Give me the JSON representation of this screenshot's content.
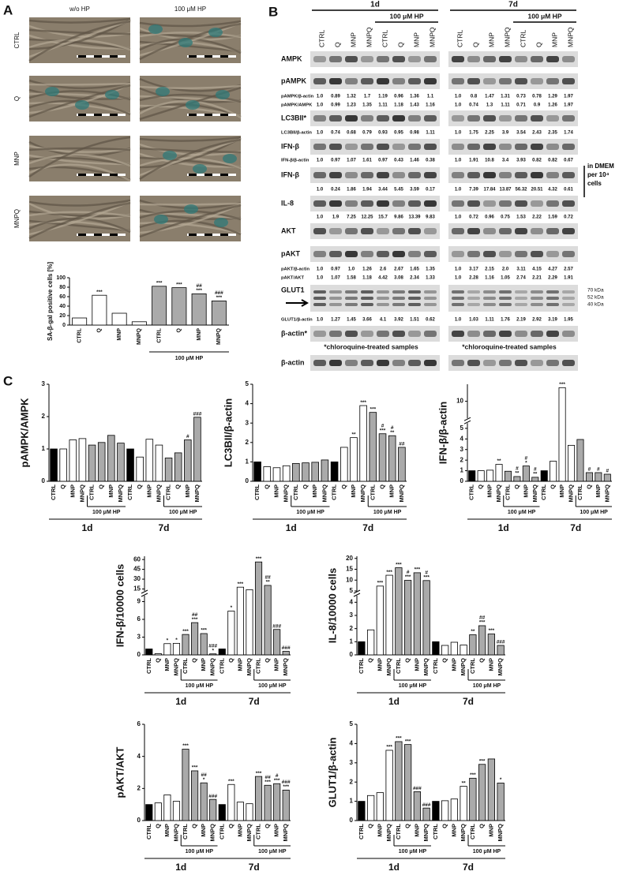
{
  "panel_labels": [
    "A",
    "B",
    "C"
  ],
  "micrographs": {
    "columns": [
      "w/o HP",
      "100 μM HP"
    ],
    "rows": [
      "CTRL",
      "Q",
      "MNP",
      "MNPQ"
    ]
  },
  "blot": {
    "groups": [
      "1d",
      "7d"
    ],
    "treatment": "100 μM HP",
    "lanes": [
      "CTRL",
      "Q",
      "MNP",
      "MNPQ",
      "CTRL",
      "Q",
      "MNP",
      "MNPQ"
    ],
    "rows": [
      {
        "label": "AMPK"
      },
      {
        "label": "pAMPK"
      },
      {
        "label": "pAMPK/β-actin",
        "1d": [
          "1.0",
          "0.89",
          "1.32",
          "1.7",
          "1.19",
          "0.96",
          "1.36",
          "1.1"
        ],
        "7d": [
          "1.0",
          "0.8",
          "1.47",
          "1.31",
          "0.73",
          "0.78",
          "1.29",
          "1.97"
        ]
      },
      {
        "label": "pAMPK/AMPK",
        "1d": [
          "1.0",
          "0.99",
          "1.23",
          "1.35",
          "1.11",
          "1.18",
          "1.43",
          "1.16"
        ],
        "7d": [
          "1.0",
          "0.74",
          "1.3",
          "1.11",
          "0.71",
          "0.9",
          "1.26",
          "1.97"
        ]
      },
      {
        "label": "LC3BII*"
      },
      {
        "label": "LC3BII/β-actin",
        "1d": [
          "1.0",
          "0.74",
          "0.68",
          "0.79",
          "0.93",
          "0.95",
          "0.98",
          "1.11"
        ],
        "7d": [
          "1.0",
          "1.75",
          "2.25",
          "3.9",
          "3.54",
          "2.43",
          "2.35",
          "1.74"
        ]
      },
      {
        "label": "IFN-β"
      },
      {
        "label": "IFN-β/β-actin",
        "1d": [
          "1.0",
          "0.97",
          "1.07",
          "1.61",
          "0.97",
          "0.43",
          "1.46",
          "0.38"
        ],
        "7d": [
          "1.0",
          "1.91",
          "10.8",
          "3.4",
          "3.93",
          "0.82",
          "0.82",
          "0.67"
        ]
      },
      {
        "label": "IFN-β"
      },
      {
        "1d": [
          "1.0",
          "0.24",
          "1.86",
          "1.94",
          "3.44",
          "5.45",
          "3.59",
          "0.17"
        ],
        "7d": [
          "1.0",
          "7.39",
          "17.84",
          "13.87",
          "56.32",
          "20.51",
          "4.32",
          "0.61"
        ]
      },
      {
        "label": "IL-8"
      },
      {
        "1d": [
          "1.0",
          "1.9",
          "7.25",
          "12.25",
          "15.7",
          "9.86",
          "13.39",
          "9.83"
        ],
        "7d": [
          "1.0",
          "0.72",
          "0.96",
          "0.75",
          "1.53",
          "2.22",
          "1.59",
          "0.72"
        ]
      },
      {
        "label": "AKT"
      },
      {
        "label": "pAKT"
      },
      {
        "label": "pAKT/β-actin",
        "1d": [
          "1.0",
          "0.97",
          "1.0",
          "1.26",
          "2.6",
          "2.67",
          "1.65",
          "1.35"
        ],
        "7d": [
          "1.0",
          "3.17",
          "2.15",
          "2.0",
          "3.11",
          "4.15",
          "4.27",
          "2.57"
        ]
      },
      {
        "label": "pAKT/AKT",
        "1d": [
          "1.0",
          "1.07",
          "1.58",
          "1.18",
          "4.42",
          "3.08",
          "2.34",
          "1.33"
        ],
        "7d": [
          "1.0",
          "2.28",
          "1.16",
          "1.05",
          "2.74",
          "2.21",
          "2.29",
          "1.91"
        ]
      },
      {
        "label": "GLUT1"
      },
      {
        "label": "GLUT1/β-actin",
        "1d": [
          "1.0",
          "1.27",
          "1.45",
          "3.66",
          "4.1",
          "3.92",
          "1.51",
          "0.62"
        ],
        "7d": [
          "1.0",
          "1.03",
          "1.11",
          "1.76",
          "2.19",
          "2.92",
          "3.19",
          "1.95"
        ]
      },
      {
        "label": "β-actin*"
      },
      {
        "label": "β-actin"
      }
    ],
    "glut1_markers": [
      "70 kDa",
      "52 kDa",
      "40 kDa"
    ],
    "dmem_note": "in DMEM per 10⁴ cells",
    "footnote": "*chloroquine-treated samples"
  },
  "chart_data": [
    {
      "type": "bar",
      "y_label": "SA-β-gal positive cells [%]",
      "categories": [
        "CTRL",
        "Q",
        "MNP",
        "MNPQ",
        "CTRL",
        "Q",
        "MNP",
        "MNPQ"
      ],
      "values": [
        15,
        63,
        25,
        7,
        82,
        79,
        66,
        51
      ],
      "colors": [
        "#fff",
        "#fff",
        "#fff",
        "#fff",
        "#aaa",
        "#aaa",
        "#aaa",
        "#aaa"
      ],
      "annotations": [
        null,
        [
          "***"
        ],
        null,
        null,
        [
          "***"
        ],
        [
          "***"
        ],
        [
          "##",
          "***"
        ],
        [
          "###",
          "***"
        ]
      ],
      "treatment_label": "100 μM HP",
      "ylim": [
        0,
        100
      ],
      "yticks": [
        0,
        20,
        40,
        60,
        80,
        100
      ]
    },
    {
      "type": "bar",
      "y_label": "pAMPK/AMPK",
      "categories": [
        "CTRL",
        "Q",
        "MNP",
        "MNPQ",
        "CTRL",
        "Q",
        "MNP",
        "MNPQ",
        "CTRL",
        "Q",
        "MNP",
        "MNPQ",
        "CTRL",
        "Q",
        "MNP",
        "MNPQ"
      ],
      "values": [
        1.0,
        1.0,
        1.28,
        1.32,
        1.12,
        1.2,
        1.42,
        1.18,
        1.0,
        0.75,
        1.3,
        1.12,
        0.72,
        0.88,
        1.28,
        1.98
      ],
      "colors": [
        "#000",
        "#fff",
        "#fff",
        "#fff",
        "#aaa",
        "#aaa",
        "#aaa",
        "#aaa",
        "#000",
        "#fff",
        "#fff",
        "#fff",
        "#aaa",
        "#aaa",
        "#aaa",
        "#aaa"
      ],
      "annotations": [
        null,
        null,
        null,
        null,
        null,
        null,
        null,
        null,
        null,
        null,
        null,
        null,
        null,
        null,
        [
          "#"
        ],
        [
          "###"
        ]
      ],
      "groups": [
        "1d",
        "7d"
      ],
      "treatment_label": "100 μM HP",
      "ylim": [
        0,
        3
      ],
      "yticks": [
        0,
        1,
        2,
        3
      ]
    },
    {
      "type": "bar",
      "y_label": "LC3BII/β-actin",
      "categories": [
        "CTRL",
        "Q",
        "MNP",
        "MNPQ",
        "CTRL",
        "Q",
        "MNP",
        "MNPQ",
        "CTRL",
        "Q",
        "MNP",
        "MNPQ",
        "CTRL",
        "Q",
        "MNP",
        "MNPQ"
      ],
      "values": [
        1.0,
        0.75,
        0.7,
        0.8,
        0.92,
        0.95,
        0.98,
        1.1,
        1.0,
        1.75,
        2.25,
        3.9,
        3.55,
        2.45,
        2.35,
        1.75
      ],
      "colors": [
        "#000",
        "#fff",
        "#fff",
        "#fff",
        "#aaa",
        "#aaa",
        "#aaa",
        "#aaa",
        "#000",
        "#fff",
        "#fff",
        "#fff",
        "#aaa",
        "#aaa",
        "#aaa",
        "#aaa"
      ],
      "annotations": [
        null,
        null,
        null,
        null,
        null,
        null,
        null,
        null,
        null,
        null,
        [
          "**"
        ],
        [
          "***"
        ],
        [
          "***"
        ],
        [
          "#",
          "***"
        ],
        [
          "#",
          "**"
        ],
        [
          "##"
        ]
      ],
      "groups": [
        "1d",
        "7d"
      ],
      "treatment_label": "100 μM HP",
      "ylim": [
        0,
        5
      ],
      "yticks": [
        0,
        1,
        2,
        3,
        4,
        5
      ]
    },
    {
      "type": "bar",
      "y_label": "IFN-β/β-actin",
      "categories": [
        "CTRL",
        "Q",
        "MNP",
        "MNPQ",
        "CTRL",
        "Q",
        "MNP",
        "MNPQ",
        "CTRL",
        "Q",
        "MNP",
        "MNPQ",
        "CTRL",
        "Q",
        "MNP",
        "MNPQ"
      ],
      "values": [
        1.0,
        1.0,
        1.05,
        1.6,
        0.95,
        0.45,
        1.45,
        0.38,
        1.0,
        1.9,
        10.8,
        3.4,
        3.95,
        0.82,
        0.82,
        0.67
      ],
      "colors": [
        "#000",
        "#fff",
        "#fff",
        "#fff",
        "#aaa",
        "#aaa",
        "#aaa",
        "#aaa",
        "#000",
        "#fff",
        "#fff",
        "#fff",
        "#aaa",
        "#aaa",
        "#aaa",
        "#aaa"
      ],
      "annotations": [
        null,
        null,
        null,
        [
          "**"
        ],
        null,
        [
          "#",
          "**"
        ],
        [
          "#",
          "*"
        ],
        [
          "#",
          "**"
        ],
        null,
        null,
        [
          "***"
        ],
        null,
        null,
        [
          "#"
        ],
        [
          "#"
        ],
        [
          "#"
        ]
      ],
      "groups": [
        "1d",
        "7d"
      ],
      "treatment_label": "100 μM HP",
      "ylim": [
        0,
        11
      ],
      "ybreak": [
        5.5,
        9
      ],
      "yticks": [
        0,
        1,
        2,
        3,
        4,
        5,
        10
      ]
    },
    {
      "type": "bar",
      "y_label": "IFN-β/10000 cells",
      "categories": [
        "CTRL",
        "Q",
        "MNP",
        "MNPQ",
        "CTRL",
        "Q",
        "MNP",
        "MNPQ",
        "CTRL",
        "Q",
        "MNP",
        "MNPQ",
        "CTRL",
        "Q",
        "MNP",
        "MNPQ"
      ],
      "values": [
        1.0,
        0.2,
        1.9,
        1.95,
        3.45,
        5.45,
        3.6,
        0.17,
        1.0,
        7.4,
        17.8,
        13.9,
        56.3,
        20.5,
        4.3,
        0.6
      ],
      "colors": [
        "#000",
        "#fff",
        "#fff",
        "#fff",
        "#aaa",
        "#aaa",
        "#aaa",
        "#aaa",
        "#000",
        "#fff",
        "#fff",
        "#fff",
        "#aaa",
        "#aaa",
        "#aaa",
        "#aaa"
      ],
      "annotations": [
        null,
        null,
        [
          "*"
        ],
        [
          "*"
        ],
        [
          "***"
        ],
        [
          "##",
          "***"
        ],
        [
          "***"
        ],
        [
          "###",
          "*"
        ],
        null,
        [
          "*"
        ],
        [
          "***"
        ],
        null,
        [
          "***"
        ],
        [
          "##",
          "**"
        ],
        [
          "###"
        ],
        [
          "###"
        ]
      ],
      "groups": [
        "1d",
        "7d"
      ],
      "treatment_label": "100 μM HP",
      "ylim": [
        0,
        65
      ],
      "ybreak": [
        10,
        12
      ],
      "yticks": [
        0,
        3,
        6,
        9,
        15,
        30,
        45,
        60
      ]
    },
    {
      "type": "bar",
      "y_label": "IL-8/10000 cells",
      "categories": [
        "CTRL",
        "Q",
        "MNP",
        "MNPQ",
        "CTRL",
        "Q",
        "MNP",
        "MNPQ",
        "CTRL",
        "Q",
        "MNP",
        "MNPQ",
        "CTRL",
        "Q",
        "MNP",
        "MNPQ"
      ],
      "values": [
        1.0,
        1.9,
        7.25,
        12.25,
        15.7,
        9.9,
        13.4,
        9.8,
        1.0,
        0.72,
        0.96,
        0.75,
        1.53,
        2.22,
        1.59,
        0.72
      ],
      "colors": [
        "#000",
        "#fff",
        "#fff",
        "#fff",
        "#aaa",
        "#aaa",
        "#aaa",
        "#aaa",
        "#000",
        "#fff",
        "#fff",
        "#fff",
        "#aaa",
        "#aaa",
        "#aaa",
        "#aaa"
      ],
      "annotations": [
        null,
        null,
        [
          "***"
        ],
        [
          "***"
        ],
        [
          "***"
        ],
        [
          "#",
          "***"
        ],
        [
          "***"
        ],
        [
          "#",
          "***"
        ],
        null,
        null,
        null,
        null,
        [
          "**"
        ],
        [
          "##",
          "***"
        ],
        [
          "***"
        ],
        [
          "###"
        ]
      ],
      "groups": [
        "1d",
        "7d"
      ],
      "treatment_label": "100 μM HP",
      "ylim": [
        0,
        21
      ],
      "ybreak": [
        4.5,
        5
      ],
      "yticks": [
        0,
        1,
        2,
        3,
        4,
        5,
        10,
        15,
        20
      ]
    },
    {
      "type": "bar",
      "y_label": "pAKT/AKT",
      "categories": [
        "CTRL",
        "Q",
        "MNP",
        "MNPQ",
        "CTRL",
        "Q",
        "MNP",
        "MNPQ",
        "CTRL",
        "Q",
        "MNP",
        "MNPQ",
        "CTRL",
        "Q",
        "MNP",
        "MNPQ"
      ],
      "values": [
        1.0,
        1.1,
        1.6,
        1.2,
        4.45,
        3.1,
        2.35,
        1.32,
        1.0,
        2.25,
        1.15,
        1.05,
        2.75,
        2.2,
        2.3,
        1.9
      ],
      "colors": [
        "#000",
        "#fff",
        "#fff",
        "#fff",
        "#aaa",
        "#aaa",
        "#aaa",
        "#aaa",
        "#000",
        "#fff",
        "#fff",
        "#fff",
        "#aaa",
        "#aaa",
        "#aaa",
        "#aaa"
      ],
      "annotations": [
        null,
        null,
        null,
        null,
        [
          "***"
        ],
        [
          "***"
        ],
        [
          "##",
          "*"
        ],
        [
          "###"
        ],
        null,
        [
          "***"
        ],
        null,
        null,
        [
          "***"
        ],
        [
          "##",
          "***"
        ],
        [
          "#",
          "***"
        ],
        [
          "###",
          "***"
        ]
      ],
      "groups": [
        "1d",
        "7d"
      ],
      "treatment_label": "100 μM HP",
      "ylim": [
        0,
        6
      ],
      "yticks": [
        0,
        2,
        4,
        6
      ]
    },
    {
      "type": "bar",
      "y_label": "GLUT1/β-actin",
      "categories": [
        "CTRL",
        "Q",
        "MNP",
        "MNPQ",
        "CTRL",
        "Q",
        "MNP",
        "MNPQ",
        "CTRL",
        "Q",
        "MNP",
        "MNPQ",
        "CTRL",
        "Q",
        "MNP",
        "MNPQ"
      ],
      "values": [
        1.0,
        1.3,
        1.45,
        3.65,
        4.1,
        3.95,
        1.5,
        0.65,
        1.0,
        1.03,
        1.12,
        1.78,
        2.2,
        2.92,
        3.2,
        1.95
      ],
      "colors": [
        "#000",
        "#fff",
        "#fff",
        "#fff",
        "#aaa",
        "#aaa",
        "#aaa",
        "#aaa",
        "#000",
        "#fff",
        "#fff",
        "#fff",
        "#aaa",
        "#aaa",
        "#aaa",
        "#aaa"
      ],
      "annotations": [
        null,
        null,
        null,
        [
          "***"
        ],
        [
          "***"
        ],
        [
          "***"
        ],
        [
          "###"
        ],
        [
          "###"
        ],
        null,
        null,
        null,
        [
          "**"
        ],
        [
          "***"
        ],
        [
          "***"
        ],
        null,
        [
          "*"
        ]
      ],
      "groups": [
        "1d",
        "7d"
      ],
      "treatment_label": "100 μM HP",
      "ylim": [
        0,
        5
      ],
      "yticks": [
        0,
        1,
        2,
        3,
        4,
        5
      ]
    }
  ]
}
